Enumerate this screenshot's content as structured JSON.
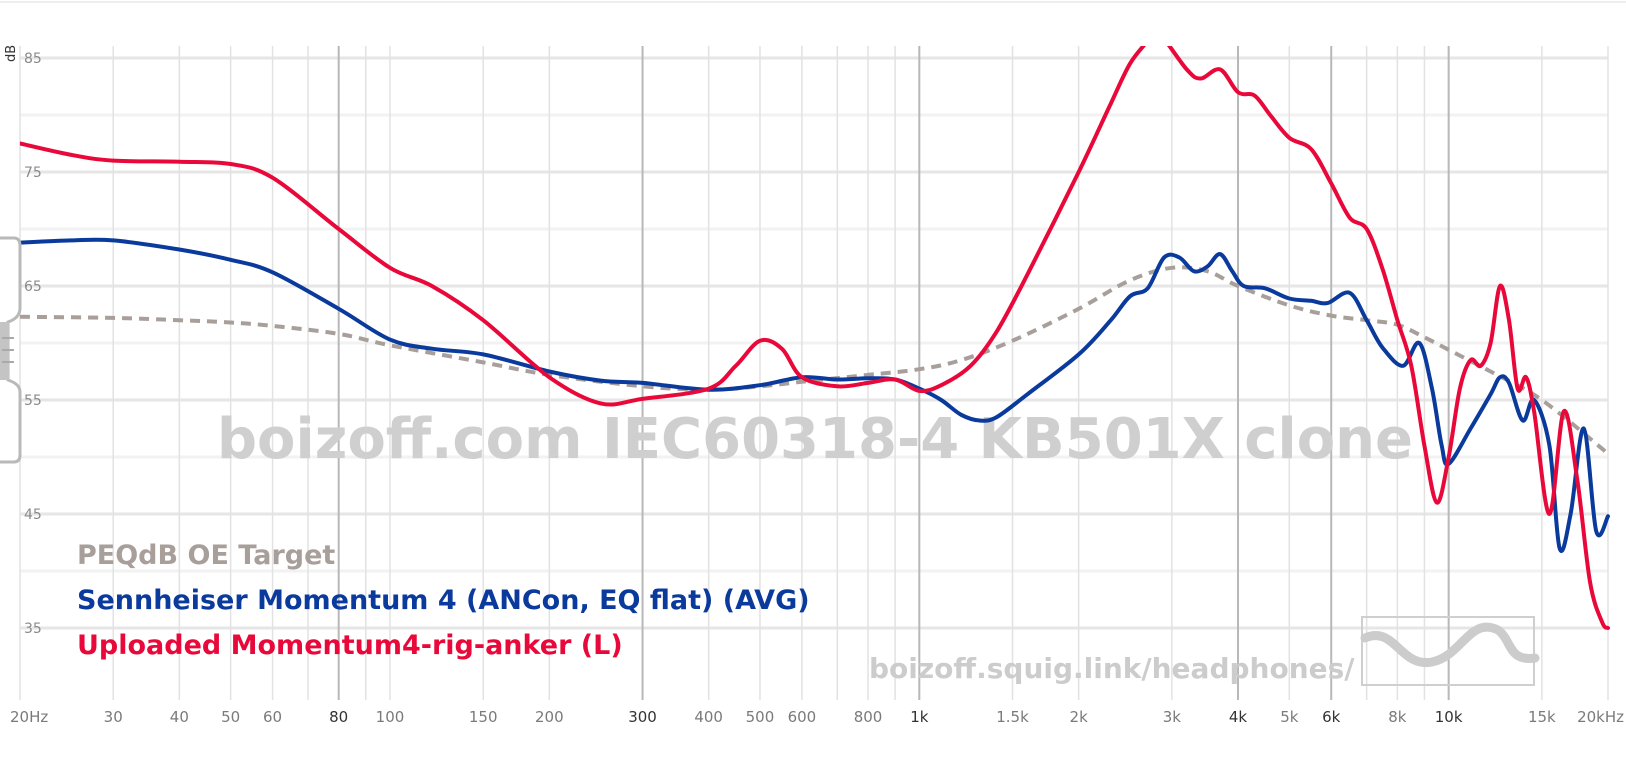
{
  "chart_data": {
    "type": "line",
    "title": "",
    "xlabel": "",
    "ylabel": "dB",
    "x_scale": "log",
    "xlim": [
      20,
      20000
    ],
    "ylim": [
      30,
      86
    ],
    "grid": true,
    "legend_position": "bottom-left",
    "watermark": "boizoff.com IEC60318-4 KB501X clone",
    "site_url": "boizoff.squig.link/headphones/",
    "y_ticks": [
      "85",
      "75",
      "65",
      "55",
      "45",
      "35"
    ],
    "x_ticks": [
      {
        "value": 20,
        "label": "20Hz",
        "major": false
      },
      {
        "value": 30,
        "label": "30",
        "major": false
      },
      {
        "value": 40,
        "label": "40",
        "major": false
      },
      {
        "value": 50,
        "label": "50",
        "major": false
      },
      {
        "value": 60,
        "label": "60",
        "major": false
      },
      {
        "value": 80,
        "label": "80",
        "major": true
      },
      {
        "value": 100,
        "label": "100",
        "major": false
      },
      {
        "value": 150,
        "label": "150",
        "major": false
      },
      {
        "value": 200,
        "label": "200",
        "major": false
      },
      {
        "value": 300,
        "label": "300",
        "major": true
      },
      {
        "value": 400,
        "label": "400",
        "major": false
      },
      {
        "value": 500,
        "label": "500",
        "major": false
      },
      {
        "value": 600,
        "label": "600",
        "major": false
      },
      {
        "value": 800,
        "label": "800",
        "major": false
      },
      {
        "value": 1000,
        "label": "1k",
        "major": true
      },
      {
        "value": 1500,
        "label": "1.5k",
        "major": false
      },
      {
        "value": 2000,
        "label": "2k",
        "major": false
      },
      {
        "value": 3000,
        "label": "3k",
        "major": false
      },
      {
        "value": 4000,
        "label": "4k",
        "major": true
      },
      {
        "value": 5000,
        "label": "5k",
        "major": false
      },
      {
        "value": 6000,
        "label": "6k",
        "major": true
      },
      {
        "value": 8000,
        "label": "8k",
        "major": false
      },
      {
        "value": 10000,
        "label": "10k",
        "major": true
      },
      {
        "value": 15000,
        "label": "15k",
        "major": false
      },
      {
        "value": 20000,
        "label": "20kHz",
        "major": false
      }
    ],
    "series": [
      {
        "name": "PEQdB OE Target",
        "color": "#a89f9b",
        "dashed": true,
        "points": [
          [
            20,
            62.3
          ],
          [
            30,
            62.2
          ],
          [
            40,
            62
          ],
          [
            50,
            61.8
          ],
          [
            60,
            61.5
          ],
          [
            80,
            60.8
          ],
          [
            100,
            59.8
          ],
          [
            150,
            58.3
          ],
          [
            200,
            57.2
          ],
          [
            300,
            56.2
          ],
          [
            400,
            55.9
          ],
          [
            500,
            56.2
          ],
          [
            600,
            56.6
          ],
          [
            800,
            57.2
          ],
          [
            1000,
            57.7
          ],
          [
            1200,
            58.5
          ],
          [
            1500,
            60.2
          ],
          [
            2000,
            63
          ],
          [
            2500,
            65.5
          ],
          [
            3000,
            66.6
          ],
          [
            3500,
            66.3
          ],
          [
            4000,
            65
          ],
          [
            5000,
            63.3
          ],
          [
            6000,
            62.4
          ],
          [
            7000,
            62
          ],
          [
            8000,
            61.6
          ],
          [
            9000,
            60.5
          ],
          [
            10000,
            59.4
          ],
          [
            12000,
            57.5
          ],
          [
            15000,
            55
          ],
          [
            20000,
            50.3
          ]
        ]
      },
      {
        "name": "Sennheiser Momentum 4 (ANCon, EQ flat) (AVG)",
        "color": "#0a3a9c",
        "dashed": false,
        "points": [
          [
            20,
            68.8
          ],
          [
            25,
            69
          ],
          [
            30,
            69
          ],
          [
            40,
            68.2
          ],
          [
            50,
            67.3
          ],
          [
            60,
            66.2
          ],
          [
            80,
            63
          ],
          [
            100,
            60.3
          ],
          [
            120,
            59.5
          ],
          [
            150,
            59
          ],
          [
            200,
            57.5
          ],
          [
            250,
            56.7
          ],
          [
            300,
            56.5
          ],
          [
            400,
            55.9
          ],
          [
            500,
            56.3
          ],
          [
            600,
            57
          ],
          [
            700,
            56.8
          ],
          [
            800,
            56.9
          ],
          [
            900,
            56.8
          ],
          [
            1000,
            56
          ],
          [
            1100,
            55
          ],
          [
            1200,
            53.7
          ],
          [
            1300,
            53.2
          ],
          [
            1400,
            53.5
          ],
          [
            1600,
            55.5
          ],
          [
            2000,
            59
          ],
          [
            2300,
            62
          ],
          [
            2500,
            64.1
          ],
          [
            2700,
            64.8
          ],
          [
            2900,
            67.5
          ],
          [
            3100,
            67.5
          ],
          [
            3300,
            66.3
          ],
          [
            3500,
            66.7
          ],
          [
            3700,
            67.8
          ],
          [
            3900,
            66.3
          ],
          [
            4100,
            65
          ],
          [
            4500,
            64.8
          ],
          [
            5000,
            63.9
          ],
          [
            5500,
            63.7
          ],
          [
            5900,
            63.5
          ],
          [
            6500,
            64.4
          ],
          [
            7000,
            62
          ],
          [
            7500,
            59.6
          ],
          [
            8200,
            58
          ],
          [
            8800,
            60
          ],
          [
            9300,
            56
          ],
          [
            9700,
            51
          ],
          [
            10000,
            49.4
          ],
          [
            11000,
            52.5
          ],
          [
            12000,
            55.5
          ],
          [
            12500,
            57
          ],
          [
            13000,
            56.5
          ],
          [
            13800,
            53.2
          ],
          [
            14500,
            55
          ],
          [
            15500,
            51
          ],
          [
            16200,
            42
          ],
          [
            17000,
            45
          ],
          [
            18000,
            52.5
          ],
          [
            19000,
            43.5
          ],
          [
            20000,
            44.8
          ]
        ]
      },
      {
        "name": "Uploaded Momentum4-rig-anker (L)",
        "color": "#e8093a",
        "dashed": false,
        "points": [
          [
            20,
            77.5
          ],
          [
            25,
            76.5
          ],
          [
            30,
            76
          ],
          [
            40,
            75.9
          ],
          [
            50,
            75.7
          ],
          [
            60,
            74.5
          ],
          [
            80,
            70
          ],
          [
            100,
            66.6
          ],
          [
            120,
            65
          ],
          [
            150,
            62
          ],
          [
            200,
            57
          ],
          [
            250,
            54.7
          ],
          [
            300,
            55.1
          ],
          [
            400,
            56
          ],
          [
            450,
            58
          ],
          [
            500,
            60.2
          ],
          [
            550,
            59.5
          ],
          [
            600,
            57
          ],
          [
            700,
            56.2
          ],
          [
            800,
            56.5
          ],
          [
            900,
            56.8
          ],
          [
            1000,
            55.8
          ],
          [
            1100,
            56.3
          ],
          [
            1250,
            58
          ],
          [
            1400,
            61
          ],
          [
            1600,
            66
          ],
          [
            2000,
            75
          ],
          [
            2300,
            81
          ],
          [
            2500,
            84.5
          ],
          [
            2700,
            86.5
          ],
          [
            2800,
            87.5
          ],
          [
            3200,
            84
          ],
          [
            3400,
            83.2
          ],
          [
            3700,
            84
          ],
          [
            4000,
            82
          ],
          [
            4300,
            81.7
          ],
          [
            4600,
            80
          ],
          [
            5000,
            78
          ],
          [
            5500,
            77
          ],
          [
            6000,
            74
          ],
          [
            6500,
            71
          ],
          [
            7000,
            70
          ],
          [
            7500,
            66.5
          ],
          [
            8000,
            62
          ],
          [
            8500,
            58
          ],
          [
            9000,
            51
          ],
          [
            9500,
            46
          ],
          [
            10000,
            50
          ],
          [
            10500,
            56
          ],
          [
            11000,
            58.5
          ],
          [
            11500,
            58
          ],
          [
            12000,
            60
          ],
          [
            12500,
            65
          ],
          [
            13000,
            62
          ],
          [
            13500,
            56
          ],
          [
            14000,
            57
          ],
          [
            14500,
            54
          ],
          [
            15500,
            45
          ],
          [
            16500,
            54
          ],
          [
            17500,
            48
          ],
          [
            18500,
            39
          ],
          [
            19500,
            35.5
          ],
          [
            20000,
            35
          ]
        ]
      }
    ]
  }
}
